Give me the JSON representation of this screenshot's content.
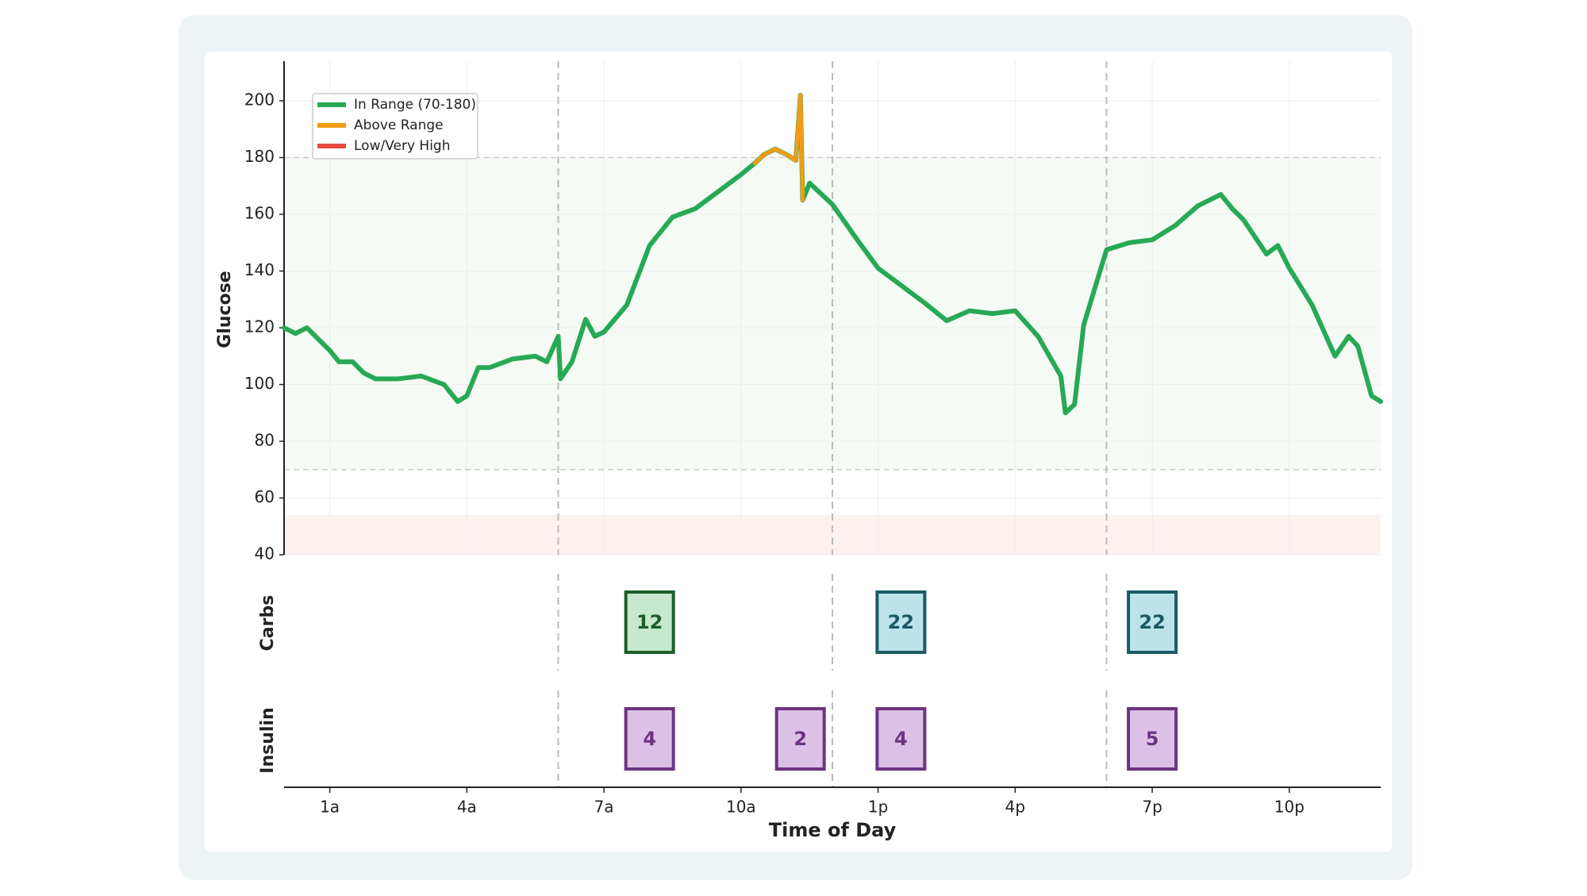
{
  "chart_data": {
    "type": "line",
    "xlabel": "Time of Day",
    "ylabel": "Glucose",
    "xlim": [
      0,
      24
    ],
    "ylim": [
      40,
      214
    ],
    "xticks": [
      {
        "value": 1,
        "label": "1a"
      },
      {
        "value": 4,
        "label": "4a"
      },
      {
        "value": 7,
        "label": "7a"
      },
      {
        "value": 10,
        "label": "10a"
      },
      {
        "value": 13,
        "label": "1p"
      },
      {
        "value": 16,
        "label": "4p"
      },
      {
        "value": 19,
        "label": "7p"
      },
      {
        "value": 22,
        "label": "10p"
      }
    ],
    "yticks": [
      40,
      60,
      80,
      100,
      120,
      140,
      160,
      180,
      200
    ],
    "grid": true,
    "target_range": [
      70,
      180
    ],
    "low_band": [
      40,
      54
    ],
    "dividers": [
      6,
      12,
      18
    ],
    "legend_position": "upper left",
    "legend": [
      {
        "name": "In Range (70-180)",
        "color": "#27a955"
      },
      {
        "name": "Above Range",
        "color": "#f39c12"
      },
      {
        "name": "Low/Very High",
        "color": "#e74c3c"
      }
    ],
    "series": [
      {
        "name": "Glucose",
        "x": [
          0,
          0.25,
          0.5,
          0.75,
          1,
          1.2,
          1.5,
          1.75,
          2,
          2.5,
          3,
          3.5,
          3.8,
          4,
          4.25,
          4.5,
          5,
          5.5,
          5.75,
          6,
          6.05,
          6.3,
          6.6,
          6.8,
          7,
          7.5,
          8,
          8.5,
          9,
          9.5,
          10,
          10.3,
          10.5,
          10.75,
          11,
          11.2,
          11.3,
          11.35,
          11.5,
          12,
          12.5,
          13,
          13.5,
          14,
          14.5,
          15,
          15.5,
          16,
          16.5,
          17,
          17.1,
          17.3,
          17.5,
          18,
          18.5,
          19,
          19.5,
          20,
          20.5,
          20.75,
          21,
          21.5,
          21.75,
          22,
          22.5,
          23,
          23.3,
          23.5,
          23.8,
          24
        ],
        "values": [
          120,
          118,
          120,
          116,
          112,
          108,
          108,
          104,
          102,
          102,
          103,
          100,
          94,
          96,
          106,
          106,
          109,
          110,
          108,
          117,
          102,
          108,
          123,
          117,
          118.5,
          128,
          149,
          159,
          162,
          168,
          174,
          178,
          181,
          183,
          181,
          179,
          202,
          165,
          171,
          163.5,
          152,
          141,
          135,
          129,
          122.5,
          126,
          125,
          126,
          117,
          103,
          90,
          93,
          121,
          147.5,
          150,
          151,
          156,
          163,
          167,
          162,
          158,
          146,
          149,
          141,
          128,
          110,
          117,
          113.5,
          96,
          94
        ]
      }
    ],
    "carbs": {
      "label": "Carbs",
      "x": [
        8,
        13.5,
        19
      ],
      "values": [
        12,
        22,
        22
      ],
      "fills": [
        "#c6e8cc",
        "#bde3ea",
        "#bde3ea"
      ],
      "strokes": [
        "#1d5e2a",
        "#1b5a66",
        "#1b5a66"
      ]
    },
    "insulin": {
      "label": "Insulin",
      "x": [
        8,
        11.3,
        13.5,
        19
      ],
      "values": [
        4,
        2,
        4,
        5
      ],
      "fill": "#dcc0e6",
      "stroke": "#6c3483"
    }
  }
}
